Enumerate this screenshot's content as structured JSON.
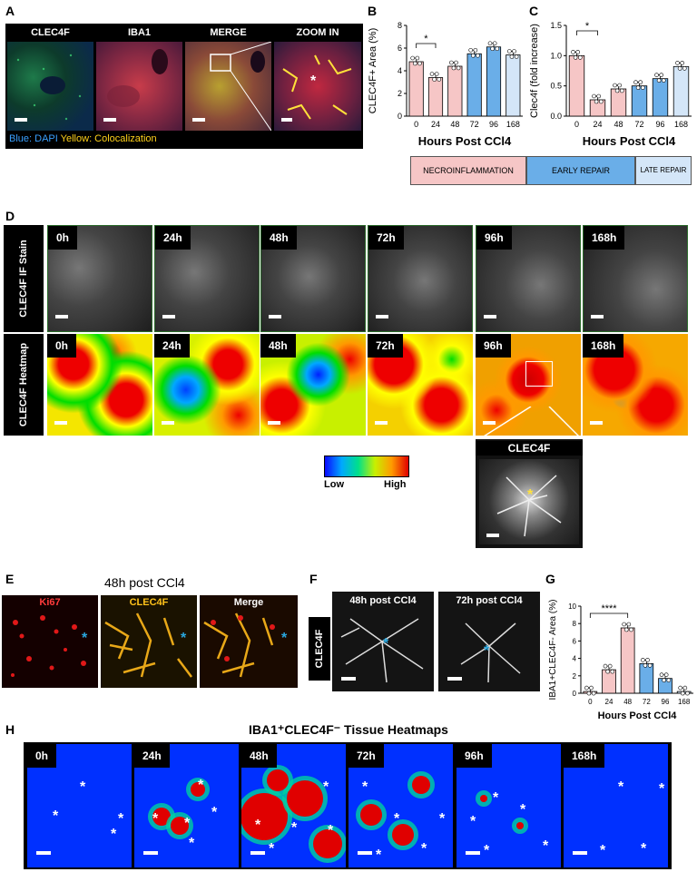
{
  "panel_letters": {
    "a": "A",
    "b": "B",
    "c": "C",
    "d": "D",
    "e": "E",
    "f": "F",
    "g": "G",
    "h": "H"
  },
  "panelA": {
    "headers": [
      "CLEC4F",
      "IBA1",
      "MERGE",
      "ZOOM IN"
    ],
    "header_colors": [
      "#3dd13d",
      "#ff3b3b",
      "#ffffff",
      "#ffffff"
    ],
    "legend_blue": "Blue: DAPI",
    "legend_yellow": "Yellow: Colocalization"
  },
  "panelD": {
    "row_labels": [
      "CLEC4F IF Stain",
      "CLEC4F Heatmap"
    ],
    "timepoints": [
      "0h",
      "24h",
      "48h",
      "72h",
      "96h",
      "168h"
    ],
    "scale_low": "Low",
    "scale_high": "High",
    "zoom_title": "CLEC4F"
  },
  "panelE": {
    "title": "48h post CCl4",
    "headers": [
      "Ki67",
      "CLEC4F",
      "Merge"
    ],
    "header_colors": [
      "#ff3b3b",
      "#ffc21a",
      "#ffffff"
    ]
  },
  "panelF": {
    "side_label": "CLEC4F",
    "headers": [
      "48h post CCl4",
      "72h post CCl4"
    ]
  },
  "panelH": {
    "title": "IBA1⁺CLEC4F⁻ Tissue Heatmaps",
    "timepoints": [
      "0h",
      "24h",
      "48h",
      "72h",
      "96h",
      "168h"
    ]
  },
  "phases": [
    "NECROINFLAMMATION",
    "EARLY REPAIR",
    "LATE REPAIR"
  ],
  "colors": {
    "necro": "#f6c6c6",
    "early": "#6aaee8",
    "late": "#d4e6f8"
  },
  "chart_data": [
    {
      "id": "B",
      "type": "bar",
      "ylabel": "CLEC4F+ Area (%)",
      "xlabel": "Hours Post CCl4",
      "categories": [
        "0",
        "24",
        "48",
        "72",
        "96",
        "168"
      ],
      "values": [
        4.8,
        3.4,
        4.4,
        5.5,
        6.1,
        5.4
      ],
      "ylim": [
        0,
        8
      ],
      "yticks": [
        "0",
        "2",
        "4",
        "6",
        "8"
      ],
      "significance": "*"
    },
    {
      "id": "C",
      "type": "bar",
      "ylabel": "Clec4f (fold increase)",
      "xlabel": "Hours Post CCl4",
      "categories": [
        "0",
        "24",
        "48",
        "72",
        "96",
        "168"
      ],
      "values": [
        1.0,
        0.27,
        0.45,
        0.5,
        0.62,
        0.82
      ],
      "ylim": [
        0,
        1.5
      ],
      "yticks": [
        "0.0",
        "0.5",
        "1.0",
        "1.5"
      ],
      "significance": "*"
    },
    {
      "id": "G",
      "type": "bar",
      "ylabel": "IBA1+CLEC4F- Area (%)",
      "xlabel": "Hours Post CCl4",
      "categories": [
        "0",
        "24",
        "48",
        "72",
        "96",
        "168"
      ],
      "values": [
        0.2,
        2.7,
        7.5,
        3.4,
        1.7,
        0.2
      ],
      "ylim": [
        0,
        10
      ],
      "yticks": [
        "0",
        "2",
        "4",
        "6",
        "8",
        "10"
      ],
      "significance": "****"
    }
  ]
}
